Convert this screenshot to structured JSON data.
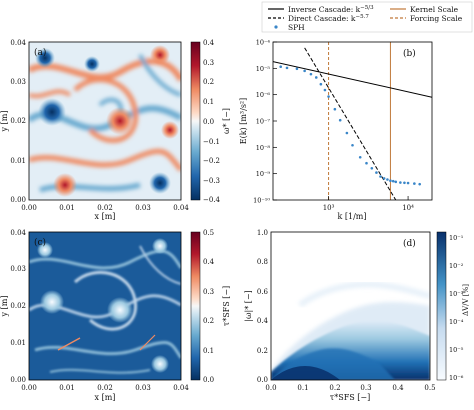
{
  "figure": {
    "legend": {
      "inverse": "Inverse Cascade: k",
      "inverse_exp": "−5/3",
      "direct": "Direct Cascade: k",
      "direct_exp": "−5.7",
      "kernel": "Kernel Scale",
      "forcing": "Forcing Scale",
      "sph": "SPH"
    },
    "colors": {
      "legend_black": "#000000",
      "kernel_line": "#c0793a",
      "forcing_line": "#c0793a",
      "sph_points": "#3a86c8",
      "heat_blue": "#0b4e93",
      "heat_red": "#b1132b"
    }
  },
  "chart_data": [
    {
      "id": "a",
      "type": "heatmap",
      "panel_label": "(a)",
      "xlabel": "x [m]",
      "ylabel": "y [m]",
      "xlim": [
        0.0,
        0.04
      ],
      "ylim": [
        0.0,
        0.04
      ],
      "x_ticks": [
        "0.00",
        "0.01",
        "0.02",
        "0.03",
        "0.04"
      ],
      "y_ticks": [
        "0.00",
        "0.01",
        "0.02",
        "0.03",
        "0.04"
      ],
      "colorbar": {
        "label": "ω* [−]",
        "range": [
          -0.4,
          0.4
        ],
        "ticks": [
          "0.4",
          "0.3",
          "0.2",
          "0.1",
          "0.0",
          "−0.1",
          "−0.2",
          "−0.3",
          "−0.4"
        ],
        "colormap": "RdBu_r"
      }
    },
    {
      "id": "b",
      "type": "line",
      "panel_label": "(b)",
      "xlabel": "k [1/m]",
      "ylabel": "E(k) [m³/s²]",
      "xscale": "log",
      "yscale": "log",
      "xlim": [
        200,
        20000
      ],
      "ylim": [
        1e-10,
        0.0001
      ],
      "x_ticks": [
        "10³",
        "10⁴"
      ],
      "y_ticks": [
        "10⁻⁴",
        "10⁻⁵",
        "10⁻⁶",
        "10⁻⁷",
        "10⁻⁸",
        "10⁻⁹",
        "10⁻¹⁰"
      ],
      "vlines": [
        {
          "name": "Forcing Scale",
          "x": 1000,
          "style": "dashed"
        },
        {
          "name": "Kernel Scale",
          "x": 6000,
          "style": "solid"
        }
      ],
      "series": [
        {
          "name": "Inverse Cascade: k^−5/3",
          "style": "solid",
          "x": [
            200,
            20000
          ],
          "y": [
            1.8e-05,
            8e-07
          ]
        },
        {
          "name": "Direct Cascade: k^−5.7",
          "style": "dashed",
          "x": [
            500,
            7000
          ],
          "y": [
            6e-05,
            1e-10
          ]
        },
        {
          "name": "SPH",
          "style": "points",
          "x": [
            250,
            300,
            400,
            500,
            600,
            700,
            800,
            900,
            1000,
            1200,
            1400,
            1700,
            2000,
            2500,
            3000,
            3500,
            4000,
            4500,
            5000,
            5500,
            6000,
            6500,
            7000,
            8000,
            9000,
            10000,
            12000,
            14000
          ],
          "y": [
            1.15e-05,
            1.04e-05,
            9.6e-06,
            8e-06,
            6e-06,
            4.5e-06,
            2.5e-06,
            1.5e-06,
            8.5e-07,
            2.8e-07,
            1.07e-07,
            3.5e-08,
            1.2e-08,
            4.2e-09,
            2.5e-09,
            1.6e-09,
            1.1e-09,
            7.8e-10,
            6.6e-10,
            6e-10,
            5.4e-10,
            5.2e-10,
            4.9e-10,
            4.6e-10,
            4.5e-10,
            4.4e-10,
            4.2e-10,
            4e-10
          ]
        }
      ]
    },
    {
      "id": "c",
      "type": "heatmap",
      "panel_label": "(c)",
      "xlabel": "x [m]",
      "ylabel": "y [m]",
      "xlim": [
        0.0,
        0.04
      ],
      "ylim": [
        0.0,
        0.04
      ],
      "x_ticks": [
        "0.00",
        "0.01",
        "0.02",
        "0.03",
        "0.04"
      ],
      "y_ticks": [
        "0.00",
        "0.01",
        "0.02",
        "0.03",
        "0.04"
      ],
      "colorbar": {
        "label": "τ*SFS [−]",
        "range": [
          0.0,
          0.5
        ],
        "ticks": [
          "0.5",
          "0.4",
          "0.3",
          "0.2",
          "0.1",
          "0.0"
        ],
        "colormap": "RdBu_r"
      }
    },
    {
      "id": "d",
      "type": "scatter",
      "panel_label": "(d)",
      "xlabel": "τ*SFS [−]",
      "ylabel": "|ω|* [−]",
      "xlim": [
        0.0,
        0.5
      ],
      "ylim": [
        0.0,
        1.0
      ],
      "x_ticks": [
        "0.0",
        "0.1",
        "0.2",
        "0.3",
        "0.4",
        "0.5"
      ],
      "y_ticks": [
        "1.0",
        "0.8",
        "0.6",
        "0.4",
        "0.2",
        "0.0"
      ],
      "colorbar": {
        "label": "ΔV/V [%]",
        "scale": "log",
        "ticks": [
          "10⁻¹",
          "10⁻²",
          "10⁻³",
          "10⁻⁴",
          "10⁻⁵",
          "10⁻⁶"
        ],
        "colormap": "Blues"
      }
    }
  ]
}
